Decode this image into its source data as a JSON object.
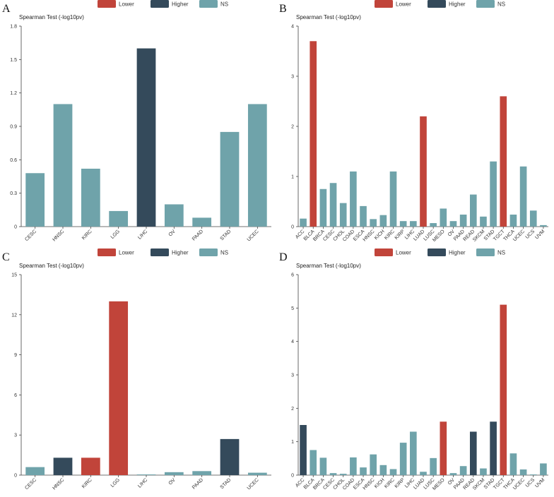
{
  "colors": {
    "Lower": "#c1443a",
    "Higher": "#344a5b",
    "NS": "#6fa3aa"
  },
  "legend": {
    "items": [
      {
        "key": "Lower",
        "label": "Lower"
      },
      {
        "key": "Higher",
        "label": "Higher"
      },
      {
        "key": "NS",
        "label": "NS"
      }
    ]
  },
  "chart_data": [
    {
      "panel": "A",
      "type": "bar",
      "ylabel": "Spearman Test (-log10pv)",
      "ylim": [
        0,
        1.8
      ],
      "yticks": [
        "0",
        "0.3",
        "0.6",
        "0.9",
        "1.2",
        "1.5",
        "1.8"
      ],
      "categories": [
        "CESC",
        "HNSC",
        "KIRC",
        "LGG",
        "LIHC",
        "OV",
        "PAAD",
        "STAD",
        "UCEC"
      ],
      "values": [
        0.48,
        1.1,
        0.52,
        0.14,
        1.6,
        0.2,
        0.08,
        0.85,
        1.1
      ],
      "groups": [
        "NS",
        "NS",
        "NS",
        "NS",
        "Higher",
        "NS",
        "NS",
        "NS",
        "NS"
      ]
    },
    {
      "panel": "B",
      "type": "bar",
      "ylabel": "Spearman Test (-log10pv)",
      "ylim": [
        0,
        4
      ],
      "yticks": [
        "0",
        "1",
        "2",
        "3",
        "4"
      ],
      "categories": [
        "ACC",
        "BLCA",
        "BRCA",
        "CESC",
        "CHOL",
        "COAD",
        "ESCA",
        "HNSC",
        "KICH",
        "KIRC",
        "KIRP",
        "LIHC",
        "LUAD",
        "LUSC",
        "MESO",
        "OV",
        "PAAD",
        "READ",
        "SKCM",
        "STAD",
        "TGCT",
        "THCA",
        "UCEC",
        "UCS",
        "UVM"
      ],
      "values": [
        0.16,
        3.7,
        0.75,
        0.87,
        0.47,
        1.1,
        0.41,
        0.15,
        0.23,
        1.1,
        0.11,
        0.11,
        2.2,
        0.07,
        0.36,
        0.11,
        0.24,
        0.64,
        0.2,
        1.3,
        2.6,
        0.24,
        1.2,
        0.32,
        0.03
      ],
      "groups": [
        "NS",
        "Lower",
        "NS",
        "NS",
        "NS",
        "NS",
        "NS",
        "NS",
        "NS",
        "NS",
        "NS",
        "NS",
        "Lower",
        "NS",
        "NS",
        "NS",
        "NS",
        "NS",
        "NS",
        "NS",
        "Lower",
        "NS",
        "NS",
        "NS",
        "NS"
      ]
    },
    {
      "panel": "C",
      "type": "bar",
      "ylabel": "Spearman Test (-log10pv)",
      "ylim": [
        0,
        15
      ],
      "yticks": [
        "0",
        "3",
        "6",
        "9",
        "12",
        "15"
      ],
      "categories": [
        "CESC",
        "HNSC",
        "KIRC",
        "LGG",
        "LIHC",
        "OV",
        "PAAD",
        "STAD",
        "UCEC"
      ],
      "values": [
        0.6,
        1.3,
        1.3,
        13.0,
        0.05,
        0.22,
        0.3,
        2.7,
        0.18
      ],
      "groups": [
        "NS",
        "Higher",
        "Lower",
        "Lower",
        "NS",
        "NS",
        "NS",
        "Higher",
        "NS"
      ]
    },
    {
      "panel": "D",
      "type": "bar",
      "ylabel": "Spearman Test (-log10pv)",
      "ylim": [
        0,
        6
      ],
      "yticks": [
        "0",
        "1",
        "2",
        "3",
        "4",
        "5",
        "6"
      ],
      "categories": [
        "ACC",
        "BLCA",
        "BRCA",
        "CESC",
        "CHOL",
        "COAD",
        "ESCA",
        "HNSC",
        "KICH",
        "KIRC",
        "KIRP",
        "LIHC",
        "LUAD",
        "LUSC",
        "MESO",
        "OV",
        "PAAD",
        "READ",
        "SKCM",
        "STAD",
        "TGCT",
        "THCA",
        "UCEC",
        "UCS",
        "UVM"
      ],
      "values": [
        1.5,
        0.75,
        0.52,
        0.06,
        0.04,
        0.53,
        0.23,
        0.62,
        0.3,
        0.18,
        0.97,
        1.3,
        0.1,
        0.51,
        1.6,
        0.06,
        0.27,
        1.3,
        0.2,
        1.6,
        5.1,
        0.65,
        0.17,
        0.02,
        0.35
      ],
      "groups": [
        "Higher",
        "NS",
        "NS",
        "NS",
        "NS",
        "NS",
        "NS",
        "NS",
        "NS",
        "NS",
        "NS",
        "NS",
        "NS",
        "NS",
        "Lower",
        "NS",
        "NS",
        "Higher",
        "NS",
        "Higher",
        "Lower",
        "NS",
        "NS",
        "NS",
        "NS"
      ]
    }
  ]
}
